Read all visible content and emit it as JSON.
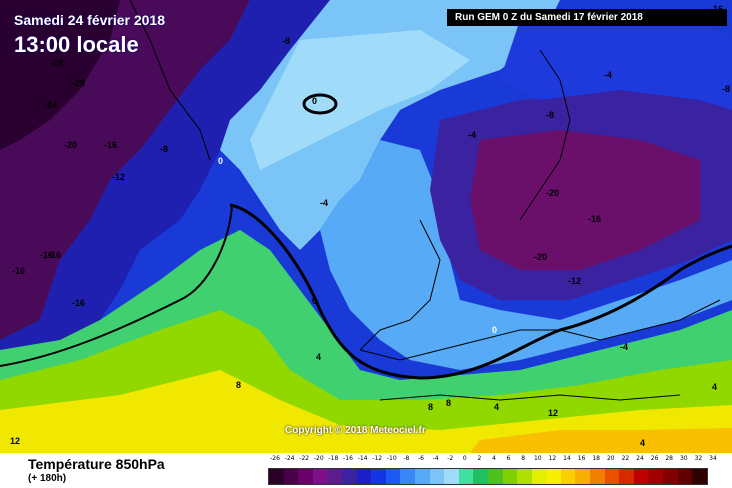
{
  "header": {
    "date_line": "Samedi 24 février 2018",
    "time_line": "13:00 locale",
    "run_info": "Run GEM 0 Z du Samedi 17 février 2018"
  },
  "copyright": "Copyright © 2018 Meteociel.fr",
  "footer": {
    "variable_label": "Température 850hPa",
    "lead_time": "(+ 180h)"
  },
  "legend": {
    "ticks": [
      "-26",
      "-24",
      "-22",
      "-20",
      "-18",
      "-16",
      "-14",
      "-12",
      "-10",
      "-8",
      "-6",
      "-4",
      "-2",
      "0",
      "2",
      "4",
      "6",
      "8",
      "10",
      "12",
      "14",
      "16",
      "18",
      "20",
      "22",
      "24",
      "26",
      "28",
      "30",
      "32",
      "34"
    ],
    "colors": [
      "#2a0028",
      "#4a0048",
      "#6a006a",
      "#80108a",
      "#5c1c8c",
      "#3a22a0",
      "#1e1ec8",
      "#1434e6",
      "#1a5af0",
      "#3a86f4",
      "#56aaf6",
      "#7ac4f8",
      "#a0dcfa",
      "#40e0a0",
      "#20c060",
      "#50c020",
      "#80d000",
      "#b0e000",
      "#e0f000",
      "#f8f000",
      "#f8d000",
      "#f8b000",
      "#f08000",
      "#e85000",
      "#d82800",
      "#c00000",
      "#a00000",
      "#800000",
      "#600000",
      "#300000"
    ]
  },
  "isotherm_labels": [
    {
      "text": "-28",
      "light": false
    },
    {
      "text": "-28",
      "light": false
    },
    {
      "text": "-24",
      "light": false
    },
    {
      "text": "-20",
      "light": false
    },
    {
      "text": "-16",
      "light": false
    },
    {
      "text": "-12",
      "light": false
    },
    {
      "text": "-8",
      "light": false
    },
    {
      "text": "-8",
      "light": false
    },
    {
      "text": "-4",
      "light": false
    },
    {
      "text": "-8",
      "light": false
    },
    {
      "text": "0",
      "light": false
    },
    {
      "text": "-4",
      "light": false
    },
    {
      "text": "0",
      "light": true
    },
    {
      "text": "-4",
      "light": false
    },
    {
      "text": "-16",
      "light": false
    },
    {
      "text": "-16",
      "light": false
    },
    {
      "text": "-16",
      "light": false
    },
    {
      "text": "-16",
      "light": false
    },
    {
      "text": "0",
      "light": false
    },
    {
      "text": "-20",
      "light": false
    },
    {
      "text": "-16",
      "light": false
    },
    {
      "text": "-20",
      "light": false
    },
    {
      "text": "-12",
      "light": false
    },
    {
      "text": "-8",
      "light": false
    },
    {
      "text": "-16",
      "light": false
    },
    {
      "text": "0",
      "light": true
    },
    {
      "text": "-4",
      "light": false
    },
    {
      "text": "4",
      "light": false
    },
    {
      "text": "8",
      "light": false
    },
    {
      "text": "4",
      "light": false
    },
    {
      "text": "8",
      "light": false
    },
    {
      "text": "8",
      "light": false
    },
    {
      "text": "12",
      "light": false
    },
    {
      "text": "4",
      "light": false
    },
    {
      "text": "12",
      "light": false
    },
    {
      "text": "4",
      "light": false
    }
  ]
}
